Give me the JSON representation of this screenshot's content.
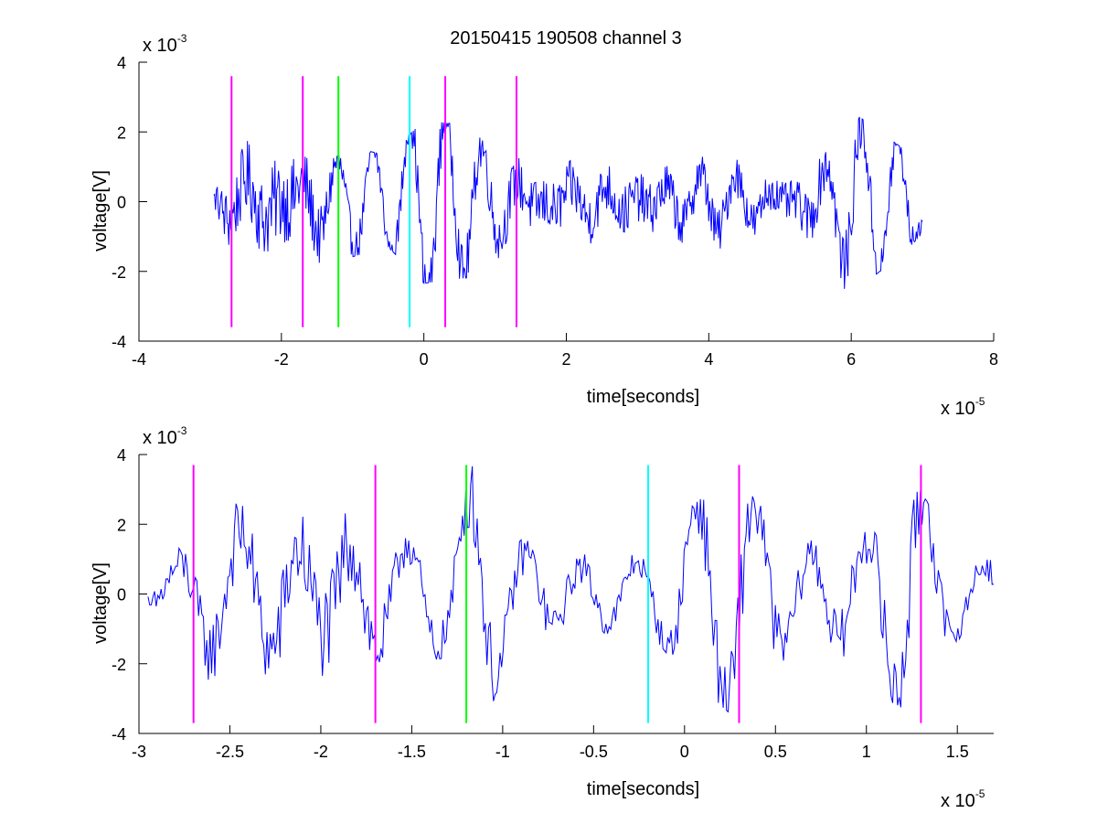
{
  "title": "20150415 190508 channel 3",
  "chart_data": [
    {
      "type": "line",
      "xlabel": "time[seconds]",
      "ylabel": "voltage[V]",
      "xlim": [
        -4e-05,
        8e-05
      ],
      "ylim": [
        -0.004,
        0.004
      ],
      "x_ticks": [
        -4e-05,
        -2e-05,
        0,
        2e-05,
        4e-05,
        6e-05,
        8e-05
      ],
      "x_tick_labels": [
        "-4",
        "-2",
        "0",
        "2",
        "4",
        "6",
        "8"
      ],
      "y_ticks": [
        -0.004,
        -0.002,
        0,
        0.002,
        0.004
      ],
      "y_tick_labels": [
        "-4",
        "-2",
        "0",
        "2",
        "4"
      ],
      "x_multiplier": {
        "base": "x 10",
        "exp": "-5"
      },
      "y_multiplier": {
        "base": "x 10",
        "exp": "-3"
      },
      "series": [
        {
          "color": "#0000ff",
          "x_range": [
            -2.95e-05,
            7e-05
          ],
          "points_count": 800,
          "amplitude_envelope": [
            [
              -2.95e-05,
              0.0006
            ],
            [
              -2.8e-05,
              0.0018
            ],
            [
              -2.5e-05,
              0.0024
            ],
            [
              -2e-05,
              0.0027
            ],
            [
              -1.6e-05,
              0.0022
            ],
            [
              -1.2e-05,
              0.0013
            ],
            [
              -5e-06,
              0.001
            ],
            [
              0,
              0.0018
            ],
            [
              1e-05,
              0.0016
            ],
            [
              2e-05,
              0.0017
            ],
            [
              3e-05,
              0.0016
            ],
            [
              4e-05,
              0.0015
            ],
            [
              5e-05,
              0.0012
            ],
            [
              6e-05,
              0.002
            ],
            [
              6.7e-05,
              0.0012
            ],
            [
              7e-05,
              0.0007
            ]
          ]
        }
      ],
      "vertical_markers": [
        {
          "x": -2.7e-05,
          "color": "#ff00ff"
        },
        {
          "x": -1.7e-05,
          "color": "#ff00ff"
        },
        {
          "x": -1.2e-05,
          "color": "#00ff00"
        },
        {
          "x": -2e-06,
          "color": "#00ffff"
        },
        {
          "x": 3e-06,
          "color": "#ff00ff"
        },
        {
          "x": 1.3e-05,
          "color": "#ff00ff"
        }
      ],
      "marker_y_range": [
        -0.0036,
        0.0036
      ],
      "grid": false,
      "legend": "none"
    },
    {
      "type": "line",
      "xlabel": "time[seconds]",
      "ylabel": "voltage[V]",
      "xlim": [
        -3e-05,
        1.7e-05
      ],
      "ylim": [
        -0.004,
        0.004
      ],
      "x_ticks": [
        -3e-05,
        -2.5e-05,
        -2e-05,
        -1.5e-05,
        -1e-05,
        -5e-06,
        0,
        5e-06,
        1e-05,
        1.5e-05
      ],
      "x_tick_labels": [
        "-3",
        "-2.5",
        "-2",
        "-1.5",
        "-1",
        "-0.5",
        "0",
        "0.5",
        "1",
        "1.5"
      ],
      "y_ticks": [
        -0.004,
        -0.002,
        0,
        0.002,
        0.004
      ],
      "y_tick_labels": [
        "-4",
        "-2",
        "0",
        "2",
        "4"
      ],
      "x_multiplier": {
        "base": "x 10",
        "exp": "-5"
      },
      "y_multiplier": {
        "base": "x 10",
        "exp": "-3"
      },
      "series": [
        {
          "color": "#0000ff",
          "x_range": [
            -2.95e-05,
            1.7e-05
          ],
          "points_count": 520,
          "amplitude_envelope": [
            [
              -2.95e-05,
              0.0008
            ],
            [
              -2.8e-05,
              0.0012
            ],
            [
              -2.6e-05,
              0.0022
            ],
            [
              -2.3e-05,
              0.0026
            ],
            [
              -2e-05,
              0.003
            ],
            [
              -1.8e-05,
              0.003
            ],
            [
              -1.6e-05,
              0.0016
            ],
            [
              -1.3e-05,
              0.0014
            ],
            [
              -1.15e-05,
              0.003
            ],
            [
              -9e-06,
              0.0014
            ],
            [
              -5e-06,
              0.001
            ],
            [
              -2e-06,
              0.0008
            ],
            [
              0,
              0.0018
            ],
            [
              3e-06,
              0.0028
            ],
            [
              6e-06,
              0.0014
            ],
            [
              1e-05,
              0.0018
            ],
            [
              1.25e-05,
              0.003
            ],
            [
              1.5e-05,
              0.001
            ],
            [
              1.7e-05,
              0.0008
            ]
          ]
        }
      ],
      "vertical_markers": [
        {
          "x": -2.7e-05,
          "color": "#ff00ff"
        },
        {
          "x": -1.7e-05,
          "color": "#ff00ff"
        },
        {
          "x": -1.2e-05,
          "color": "#00ff00"
        },
        {
          "x": -2e-06,
          "color": "#00ffff"
        },
        {
          "x": 3e-06,
          "color": "#ff00ff"
        },
        {
          "x": 1.3e-05,
          "color": "#ff00ff"
        }
      ],
      "marker_y_range": [
        -0.0037,
        0.0037
      ],
      "grid": false,
      "legend": "none"
    }
  ]
}
